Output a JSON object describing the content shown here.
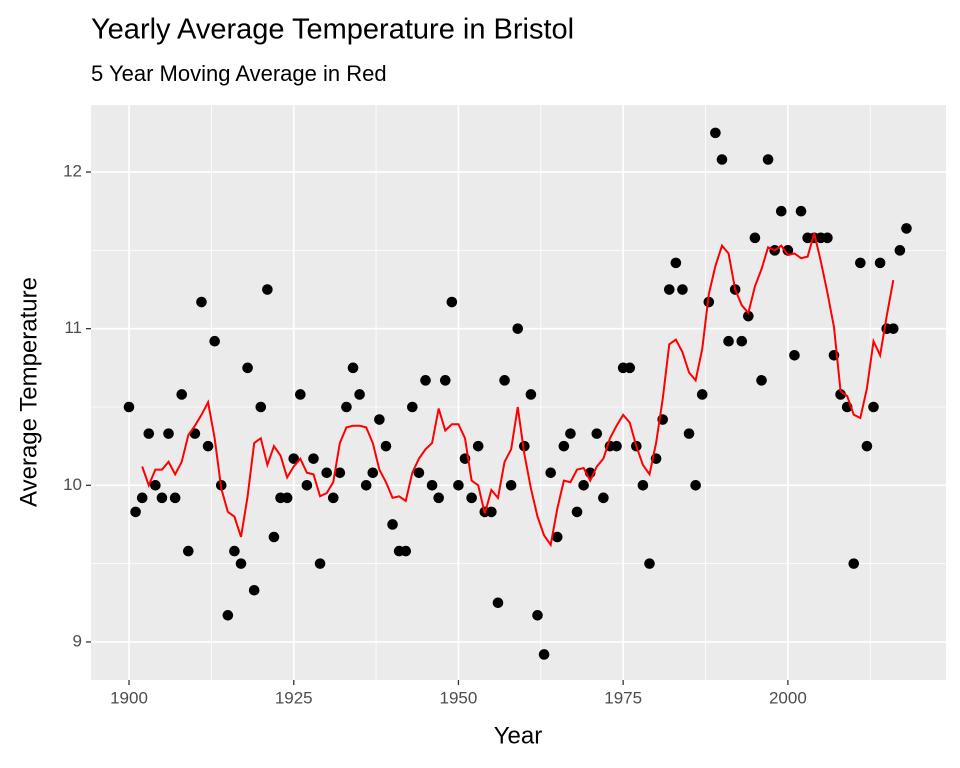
{
  "chart_data": {
    "type": "scatter",
    "title": "Yearly Average Temperature in Bristol",
    "subtitle": "5 Year Moving Average in Red",
    "x_label": "Year",
    "y_label": "Average Temperature",
    "x": [
      1900,
      1901,
      1902,
      1903,
      1904,
      1905,
      1906,
      1907,
      1908,
      1909,
      1910,
      1911,
      1912,
      1913,
      1914,
      1915,
      1916,
      1917,
      1918,
      1919,
      1920,
      1921,
      1922,
      1923,
      1924,
      1925,
      1926,
      1927,
      1928,
      1929,
      1930,
      1931,
      1932,
      1933,
      1934,
      1935,
      1936,
      1937,
      1938,
      1939,
      1940,
      1941,
      1942,
      1943,
      1944,
      1945,
      1946,
      1947,
      1948,
      1949,
      1950,
      1951,
      1952,
      1953,
      1954,
      1955,
      1956,
      1957,
      1958,
      1959,
      1960,
      1961,
      1962,
      1963,
      1964,
      1965,
      1966,
      1967,
      1968,
      1969,
      1970,
      1971,
      1972,
      1973,
      1974,
      1975,
      1976,
      1977,
      1978,
      1979,
      1980,
      1981,
      1982,
      1983,
      1984,
      1985,
      1986,
      1987,
      1988,
      1989,
      1990,
      1991,
      1992,
      1993,
      1994,
      1995,
      1996,
      1997,
      1998,
      1999,
      2000,
      2001,
      2002,
      2003,
      2004,
      2005,
      2006,
      2007,
      2008,
      2009,
      2010,
      2011,
      2012,
      2013,
      2014,
      2015,
      2016,
      2017,
      2018
    ],
    "series": [
      {
        "style": "points",
        "color": "#000000",
        "values": [
          10.5,
          9.83,
          9.92,
          10.33,
          10.0,
          9.92,
          10.33,
          9.92,
          10.58,
          9.58,
          10.33,
          11.17,
          10.25,
          10.92,
          10.0,
          9.17,
          9.58,
          9.5,
          10.75,
          9.33,
          10.5,
          11.25,
          9.67,
          9.92,
          9.92,
          10.17,
          10.58,
          10.0,
          10.17,
          9.5,
          10.08,
          9.92,
          10.08,
          10.5,
          10.75,
          10.58,
          10.0,
          10.08,
          10.42,
          10.25,
          9.75,
          9.58,
          9.58,
          10.5,
          10.08,
          10.67,
          10.0,
          9.92,
          10.67,
          11.17,
          10.0,
          10.17,
          9.92,
          10.25,
          9.83,
          9.83,
          9.25,
          10.67,
          10.0,
          11.0,
          10.25,
          10.58,
          9.17,
          8.92,
          10.08,
          9.67,
          10.25,
          10.33,
          9.83,
          10.0,
          10.08,
          10.33,
          9.92,
          10.25,
          10.25,
          10.75,
          10.75,
          10.25,
          10.0,
          9.5,
          10.17,
          10.42,
          11.25,
          11.42,
          11.25,
          10.33,
          10.0,
          10.58,
          11.17,
          12.25,
          12.08,
          10.92,
          11.25,
          10.92,
          11.08,
          11.58,
          10.67,
          12.08,
          11.5,
          11.75,
          11.5,
          10.83,
          11.75,
          11.58,
          11.58,
          11.58,
          11.58,
          10.83,
          10.58,
          10.5,
          9.5,
          11.42,
          10.25,
          10.5,
          11.42,
          11.0,
          11.0,
          11.5,
          11.64
        ]
      },
      {
        "style": "line",
        "color": "#ff0000",
        "values": [
          null,
          null,
          10.12,
          10.0,
          10.1,
          10.1,
          10.15,
          10.07,
          10.15,
          10.32,
          10.38,
          10.45,
          10.53,
          10.3,
          9.98,
          9.83,
          9.8,
          9.67,
          9.93,
          10.27,
          10.3,
          10.13,
          10.25,
          10.19,
          10.05,
          10.12,
          10.17,
          10.08,
          10.07,
          9.93,
          9.95,
          10.02,
          10.27,
          10.37,
          10.38,
          10.38,
          10.37,
          10.27,
          10.1,
          10.02,
          9.92,
          9.93,
          9.9,
          10.08,
          10.17,
          10.23,
          10.27,
          10.49,
          10.35,
          10.39,
          10.39,
          10.3,
          10.03,
          10.0,
          9.82,
          9.97,
          9.92,
          10.15,
          10.23,
          10.5,
          10.2,
          9.98,
          9.8,
          9.68,
          9.62,
          9.85,
          10.03,
          10.02,
          10.1,
          10.11,
          10.03,
          10.12,
          10.17,
          10.3,
          10.38,
          10.45,
          10.4,
          10.25,
          10.13,
          10.07,
          10.27,
          10.55,
          10.9,
          10.93,
          10.85,
          10.72,
          10.67,
          10.87,
          11.22,
          11.4,
          11.53,
          11.48,
          11.25,
          11.15,
          11.1,
          11.27,
          11.38,
          11.52,
          11.5,
          11.53,
          11.47,
          11.48,
          11.45,
          11.46,
          11.61,
          11.43,
          11.23,
          11.01,
          10.6,
          10.57,
          10.45,
          10.43,
          10.62,
          10.92,
          10.83,
          11.08,
          11.31,
          null,
          null
        ]
      }
    ],
    "xlim": [
      1894.23,
      2024.0
    ],
    "xticks": [
      1900,
      1925,
      1950,
      1975,
      2000
    ],
    "ylim": [
      8.757,
      12.428
    ],
    "yticks": [
      9,
      10,
      11,
      12
    ],
    "x_minor_grid": [
      1912.5,
      1937.5,
      1962.5,
      1987.5,
      2012.5
    ],
    "y_minor_grid": [
      9.5,
      10.5,
      11.5
    ],
    "grid": true,
    "panel_color": "#ebebeb"
  }
}
